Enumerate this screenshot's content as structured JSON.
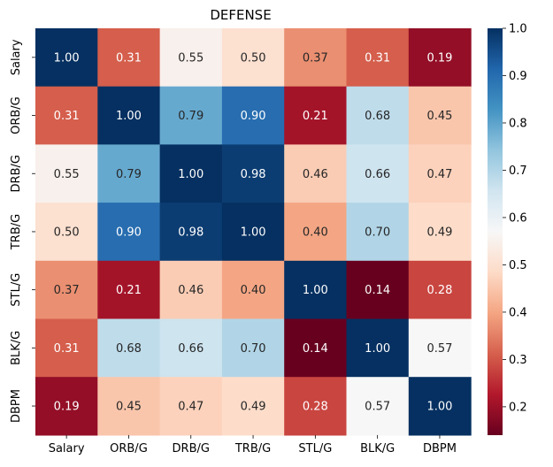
{
  "chart_data": {
    "type": "heatmap",
    "title": "DEFENSE",
    "x_labels": [
      "Salary",
      "ORB/G",
      "DRB/G",
      "TRB/G",
      "STL/G",
      "BLK/G",
      "DBPM"
    ],
    "y_labels": [
      "Salary",
      "ORB/G",
      "DRB/G",
      "TRB/G",
      "STL/G",
      "BLK/G",
      "DBPM"
    ],
    "values": [
      [
        1.0,
        0.31,
        0.55,
        0.5,
        0.37,
        0.31,
        0.19
      ],
      [
        0.31,
        1.0,
        0.79,
        0.9,
        0.21,
        0.68,
        0.45
      ],
      [
        0.55,
        0.79,
        1.0,
        0.98,
        0.46,
        0.66,
        0.47
      ],
      [
        0.5,
        0.9,
        0.98,
        1.0,
        0.4,
        0.7,
        0.49
      ],
      [
        0.37,
        0.21,
        0.46,
        0.4,
        1.0,
        0.14,
        0.28
      ],
      [
        0.31,
        0.68,
        0.66,
        0.7,
        0.14,
        1.0,
        0.57
      ],
      [
        0.19,
        0.45,
        0.47,
        0.49,
        0.28,
        0.57,
        1.0
      ]
    ],
    "value_format": "2 decimals",
    "colormap": "RdBu",
    "color_range": [
      0.14,
      1.0
    ],
    "colorbar_ticks": [
      "0.2",
      "0.3",
      "0.4",
      "0.5",
      "0.6",
      "0.7",
      "0.8",
      "0.9",
      "1.0"
    ],
    "colorbar_tick_values": [
      0.2,
      0.3,
      0.4,
      0.5,
      0.6,
      0.7,
      0.8,
      0.9,
      1.0
    ],
    "colorbar_placement": "right",
    "grid": false
  }
}
